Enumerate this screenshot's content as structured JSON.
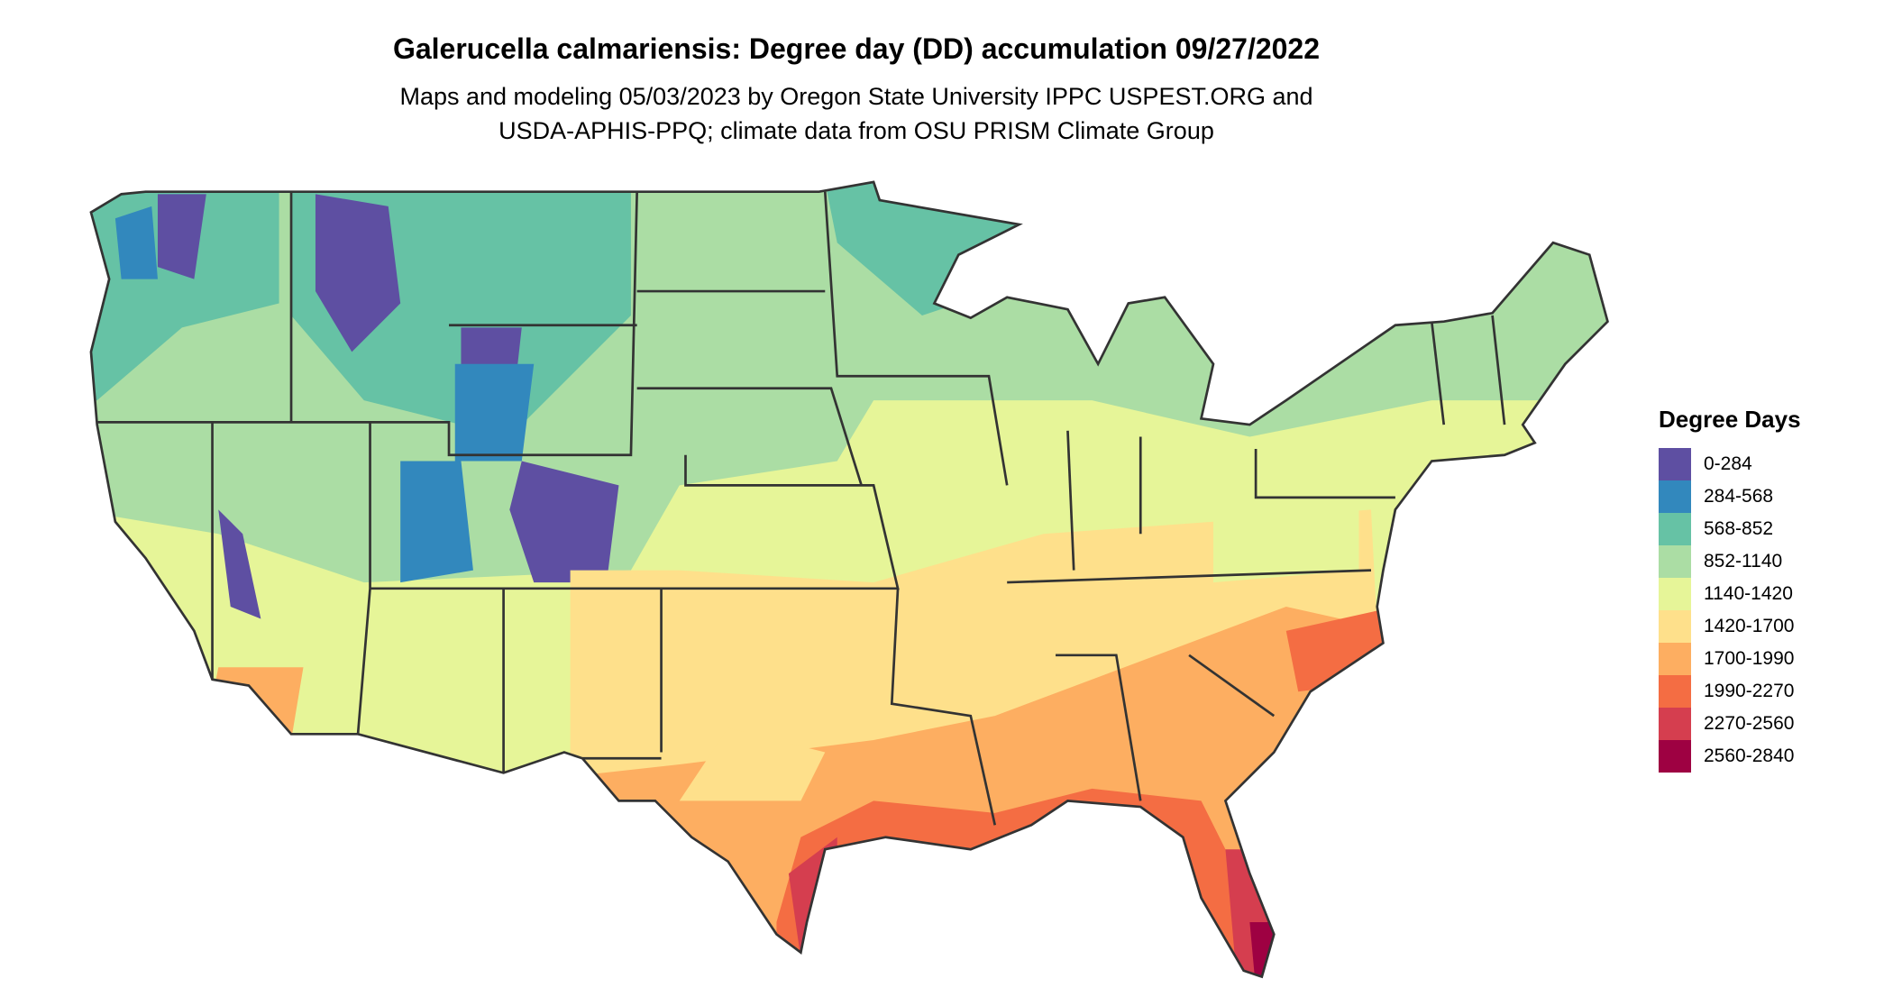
{
  "title": "Galerucella calmariensis: Degree day (DD) accumulation 09/27/2022",
  "subtitle_lines": [
    "Maps and modeling 05/03/2023 by Oregon State University IPPC USPEST.ORG and",
    "USDA-APHIS-PPQ; climate data from OSU PRISM Climate Group"
  ],
  "map": {
    "region": "Contiguous United States",
    "type": "choropleth raster with state borders"
  },
  "legend": {
    "title": "Degree Days",
    "items": [
      {
        "label": "0-284",
        "color": "#5E4FA2"
      },
      {
        "label": "284-568",
        "color": "#3288BD"
      },
      {
        "label": "568-852",
        "color": "#66C2A5"
      },
      {
        "label": "852-1140",
        "color": "#ABDDA4"
      },
      {
        "label": "1140-1420",
        "color": "#E6F598"
      },
      {
        "label": "1420-1700",
        "color": "#FEE08B"
      },
      {
        "label": "1700-1990",
        "color": "#FDAE61"
      },
      {
        "label": "1990-2270",
        "color": "#F46D43"
      },
      {
        "label": "2270-2560",
        "color": "#D53E4F"
      },
      {
        "label": "2560-2840",
        "color": "#9E0142"
      }
    ]
  }
}
